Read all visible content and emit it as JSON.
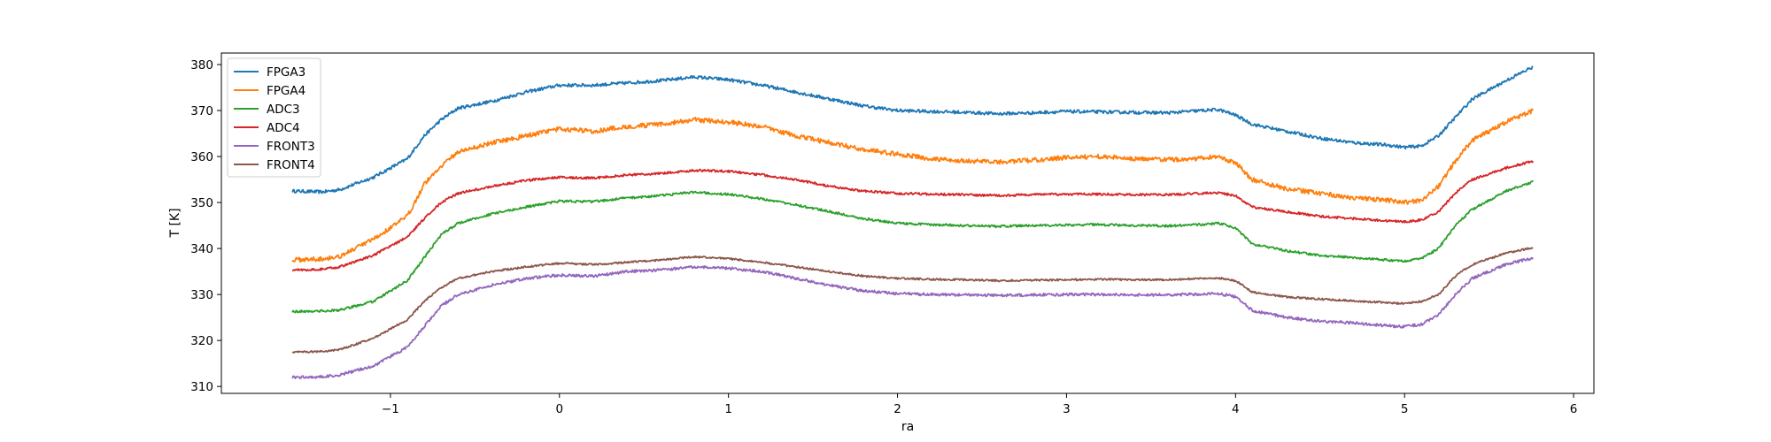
{
  "chart_data": {
    "type": "line",
    "xlabel": "ra",
    "ylabel": "T [K]",
    "xlim": [
      -2.0,
      6.12
    ],
    "ylim": [
      308.5,
      382.5
    ],
    "x_ticks": [
      -1,
      0,
      1,
      2,
      3,
      4,
      5,
      6
    ],
    "x_tick_labels": [
      "−1",
      "0",
      "1",
      "2",
      "3",
      "4",
      "5",
      "6"
    ],
    "y_ticks": [
      310,
      320,
      330,
      340,
      350,
      360,
      370,
      380
    ],
    "y_tick_labels": [
      "310",
      "320",
      "330",
      "340",
      "350",
      "360",
      "370",
      "380"
    ],
    "grid": false,
    "legend_position": "upper-left",
    "x": [
      -1.58,
      -1.4,
      -1.3,
      -1.1,
      -0.9,
      -0.8,
      -0.7,
      -0.6,
      -0.4,
      -0.2,
      0.0,
      0.2,
      0.4,
      0.6,
      0.8,
      1.0,
      1.2,
      1.4,
      1.6,
      1.8,
      2.0,
      2.2,
      2.4,
      2.6,
      2.8,
      3.0,
      3.2,
      3.4,
      3.6,
      3.8,
      3.9,
      4.0,
      4.1,
      4.3,
      4.5,
      4.7,
      4.9,
      5.0,
      5.1,
      5.2,
      5.3,
      5.4,
      5.6,
      5.76
    ],
    "series": [
      {
        "name": "FPGA3",
        "color": "#1f77b4",
        "noise": 0.35,
        "values": [
          352.5,
          352.3,
          352.8,
          355.5,
          359.5,
          364.5,
          368.0,
          370.5,
          372.0,
          374.0,
          375.5,
          375.5,
          376.0,
          376.5,
          377.3,
          376.7,
          375.5,
          374.0,
          372.5,
          371.0,
          370.0,
          369.8,
          369.6,
          369.3,
          369.5,
          369.8,
          369.7,
          369.6,
          369.5,
          370.0,
          370.2,
          369.0,
          367.0,
          365.5,
          364.0,
          363.0,
          362.5,
          362.0,
          362.3,
          364.5,
          368.5,
          372.5,
          376.5,
          379.5
        ]
      },
      {
        "name": "FPGA4",
        "color": "#ff7f0e",
        "noise": 0.5,
        "values": [
          337.5,
          337.8,
          338.3,
          342.0,
          347.0,
          354.0,
          358.0,
          361.0,
          363.0,
          364.5,
          366.0,
          365.5,
          366.5,
          367.0,
          368.0,
          367.5,
          366.5,
          364.5,
          363.0,
          361.5,
          360.5,
          359.5,
          359.0,
          358.8,
          359.2,
          359.8,
          360.0,
          359.5,
          359.3,
          359.6,
          360.0,
          358.5,
          355.0,
          353.0,
          352.0,
          351.0,
          350.5,
          350.0,
          350.5,
          353.5,
          359.0,
          363.5,
          367.5,
          370.0
        ]
      },
      {
        "name": "ADC3",
        "color": "#2ca02c",
        "noise": 0.25,
        "values": [
          326.3,
          326.4,
          326.6,
          328.5,
          333.0,
          338.0,
          343.0,
          345.5,
          347.5,
          349.0,
          350.3,
          350.2,
          351.0,
          351.5,
          352.3,
          351.8,
          350.8,
          349.5,
          348.0,
          346.5,
          345.5,
          345.2,
          345.0,
          344.8,
          345.0,
          345.1,
          345.2,
          345.0,
          344.9,
          345.2,
          345.5,
          344.5,
          341.0,
          339.5,
          338.5,
          338.0,
          337.5,
          337.2,
          337.8,
          340.0,
          345.0,
          348.5,
          352.5,
          354.5
        ]
      },
      {
        "name": "ADC4",
        "color": "#d62728",
        "noise": 0.25,
        "values": [
          335.3,
          335.5,
          336.0,
          338.5,
          342.5,
          346.5,
          350.0,
          352.0,
          353.5,
          354.8,
          355.5,
          355.3,
          356.0,
          356.3,
          357.0,
          356.8,
          356.0,
          355.0,
          353.5,
          352.5,
          352.0,
          351.8,
          351.7,
          351.5,
          351.7,
          351.8,
          351.8,
          351.7,
          351.7,
          352.0,
          352.1,
          351.5,
          349.0,
          348.0,
          347.0,
          346.5,
          346.0,
          345.8,
          346.2,
          348.0,
          352.0,
          355.0,
          357.5,
          359.0
        ]
      },
      {
        "name": "FRONT3",
        "color": "#9467bd",
        "noise": 0.3,
        "values": [
          312.0,
          312.1,
          312.5,
          314.5,
          318.5,
          323.0,
          327.5,
          330.0,
          332.0,
          333.5,
          334.2,
          334.0,
          335.0,
          335.3,
          336.0,
          335.7,
          335.0,
          333.5,
          332.0,
          330.8,
          330.2,
          330.0,
          329.9,
          329.8,
          329.9,
          330.0,
          330.0,
          329.9,
          329.9,
          330.1,
          330.2,
          329.5,
          326.5,
          325.0,
          324.2,
          323.8,
          323.2,
          323.0,
          323.5,
          325.5,
          330.0,
          333.5,
          336.5,
          338.0
        ]
      },
      {
        "name": "FRONT4",
        "color": "#8c564b",
        "noise": 0.2,
        "values": [
          317.5,
          317.6,
          318.0,
          320.5,
          324.5,
          328.5,
          331.5,
          333.5,
          335.0,
          336.0,
          336.8,
          336.5,
          337.0,
          337.5,
          338.2,
          337.8,
          337.0,
          336.0,
          335.0,
          334.0,
          333.5,
          333.3,
          333.2,
          333.0,
          333.1,
          333.2,
          333.3,
          333.2,
          333.2,
          333.5,
          333.6,
          333.0,
          330.5,
          329.5,
          329.0,
          328.6,
          328.2,
          328.0,
          328.5,
          330.0,
          334.0,
          336.5,
          339.0,
          340.2
        ]
      }
    ]
  }
}
